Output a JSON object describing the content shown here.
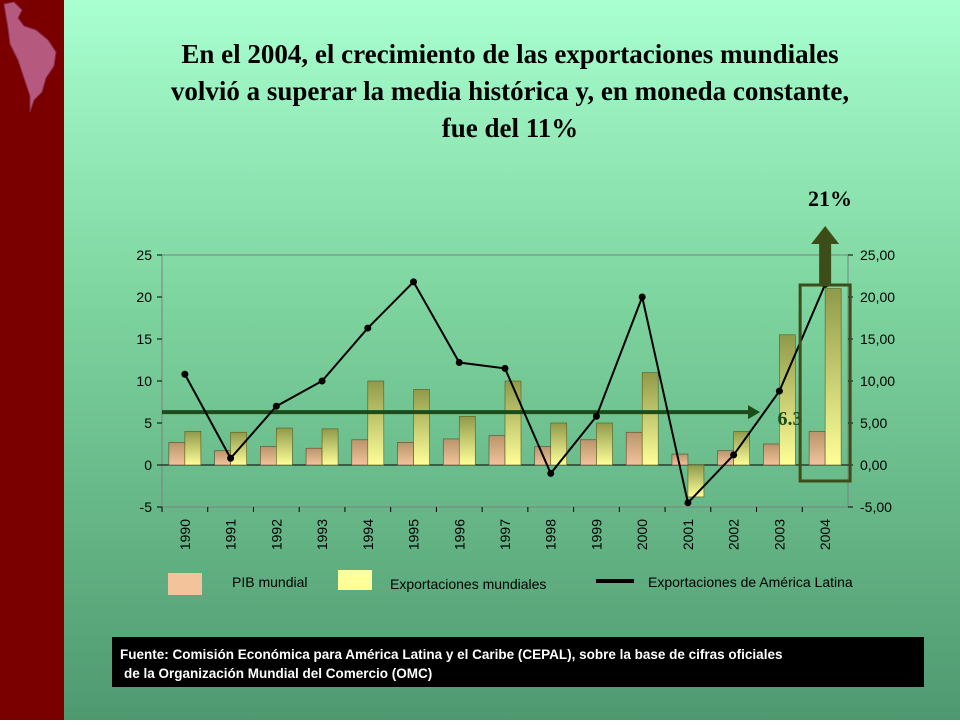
{
  "slide": {
    "title": "En el 2004, el crecimiento de las exportaciones mundiales volvió a superar la media histórica y, en moneda constante, fue del 11%",
    "callout_21": "21%",
    "avg_label": "6.3",
    "source_line1": "Fuente: Comisión Económica para América Latina y el Caribe (CEPAL), sobre la base de  cifras oficiales",
    "source_line2": " de la Organización Mundial del Comercio (OMC)"
  },
  "colors": {
    "sidebar": "#7a0000",
    "pib": "#f3c39c",
    "exports_world": "#ffff99",
    "line": "#000000",
    "average": "#1a4d1a",
    "arrow": "#3d4d1a"
  },
  "chart_data": {
    "type": "bar",
    "categories": [
      "1990",
      "1991",
      "1992",
      "1993",
      "1994",
      "1995",
      "1996",
      "1997",
      "1998",
      "1999",
      "2000",
      "2001",
      "2002",
      "2003",
      "2004"
    ],
    "series": [
      {
        "name": "PIB mundial",
        "type": "bar",
        "axis": "left",
        "values": [
          2.7,
          1.7,
          2.2,
          2.0,
          3.0,
          2.7,
          3.1,
          3.5,
          2.2,
          3.0,
          3.9,
          1.3,
          1.7,
          2.5,
          4.0
        ]
      },
      {
        "name": "Exportaciones mundiales",
        "type": "bar",
        "axis": "left",
        "values": [
          4.0,
          3.9,
          4.4,
          4.3,
          10.0,
          9.0,
          5.8,
          10.0,
          5.0,
          5.0,
          11.0,
          -3.8,
          4.0,
          15.5,
          21.0
        ]
      },
      {
        "name": "Exportaciones de América Latina",
        "type": "line",
        "axis": "right",
        "values": [
          10.8,
          0.8,
          7.0,
          10.0,
          16.3,
          21.8,
          12.2,
          11.5,
          -1.0,
          5.8,
          20.0,
          -4.5,
          1.2,
          8.8,
          21.5
        ]
      }
    ],
    "average_line": 6.3,
    "y_left": {
      "min": -5,
      "max": 25,
      "ticks": [
        "-5",
        "0",
        "5",
        "10",
        "15",
        "20",
        "25"
      ]
    },
    "y_right": {
      "min": -5,
      "max": 25,
      "ticks": [
        "-5,00",
        "0,00",
        "5,00",
        "10,00",
        "15,00",
        "20,00",
        "25,00"
      ]
    },
    "highlight": {
      "category": "2004",
      "label": "21%"
    }
  }
}
